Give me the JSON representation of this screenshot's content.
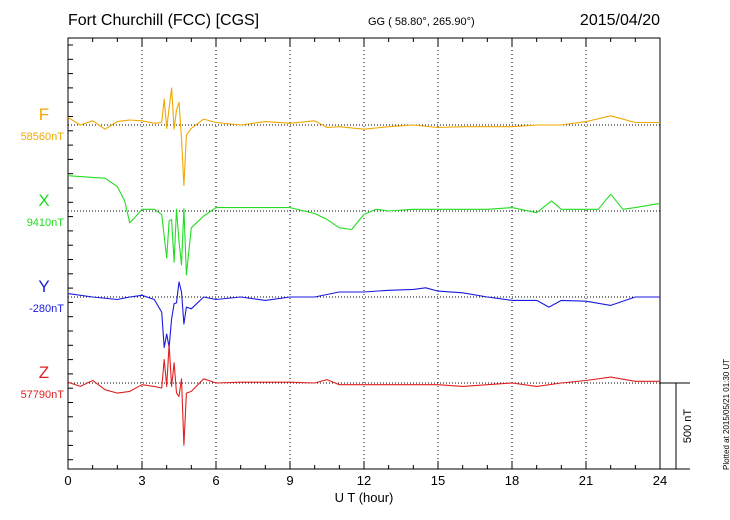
{
  "header": {
    "station": "Fort Churchill (FCC)  [CGS]",
    "coords": "GG ( 58.80°, 265.90°)",
    "date": "2015/04/20"
  },
  "plotted_note": "Plotted at 2015/05/21 01:30 UT",
  "chart_data": {
    "type": "line",
    "xlabel": "U T (hour)",
    "xlim": [
      0,
      24
    ],
    "xticks": [
      "0",
      "3",
      "6",
      "9",
      "12",
      "15",
      "18",
      "21",
      "24"
    ],
    "scale_bar": "500 nT",
    "nT_per_division": 500,
    "grid": "dotted vertical lines every 3 h; dotted baseline per component",
    "series": [
      {
        "name": "F",
        "baseline": "58560nT",
        "color": "#f0a800",
        "points": [
          [
            0,
            45
          ],
          [
            0.5,
            0
          ],
          [
            1,
            25
          ],
          [
            1.5,
            -25
          ],
          [
            2,
            20
          ],
          [
            2.5,
            30
          ],
          [
            3,
            25
          ],
          [
            3.5,
            10
          ],
          [
            3.8,
            15
          ],
          [
            3.9,
            155
          ],
          [
            4.0,
            -20
          ],
          [
            4.1,
            100
          ],
          [
            4.2,
            220
          ],
          [
            4.3,
            -25
          ],
          [
            4.4,
            90
          ],
          [
            4.5,
            135
          ],
          [
            4.6,
            -80
          ],
          [
            4.7,
            -360
          ],
          [
            4.8,
            -60
          ],
          [
            5.0,
            -20
          ],
          [
            5.5,
            35
          ],
          [
            6,
            15
          ],
          [
            7,
            0
          ],
          [
            8,
            20
          ],
          [
            9,
            10
          ],
          [
            10,
            25
          ],
          [
            10.5,
            -15
          ],
          [
            11,
            -10
          ],
          [
            12,
            -25
          ],
          [
            13,
            -10
          ],
          [
            14,
            0
          ],
          [
            15,
            -15
          ],
          [
            16,
            -10
          ],
          [
            17,
            -10
          ],
          [
            18,
            -10
          ],
          [
            19,
            0
          ],
          [
            20,
            0
          ],
          [
            21,
            20
          ],
          [
            22,
            55
          ],
          [
            23,
            15
          ],
          [
            24,
            15
          ]
        ]
      },
      {
        "name": "X",
        "baseline": "9410nT",
        "color": "#22dd22",
        "points": [
          [
            0,
            210
          ],
          [
            1,
            200
          ],
          [
            1.5,
            195
          ],
          [
            2,
            145
          ],
          [
            2.3,
            60
          ],
          [
            2.5,
            -70
          ],
          [
            2.7,
            -40
          ],
          [
            3,
            10
          ],
          [
            3.5,
            10
          ],
          [
            3.8,
            -20
          ],
          [
            4.0,
            -280
          ],
          [
            4.1,
            -60
          ],
          [
            4.2,
            -50
          ],
          [
            4.3,
            -305
          ],
          [
            4.4,
            10
          ],
          [
            4.5,
            -180
          ],
          [
            4.6,
            -320
          ],
          [
            4.7,
            15
          ],
          [
            4.8,
            -380
          ],
          [
            5.0,
            -100
          ],
          [
            5.5,
            -30
          ],
          [
            6,
            20
          ],
          [
            7,
            20
          ],
          [
            8,
            20
          ],
          [
            9,
            20
          ],
          [
            10,
            -15
          ],
          [
            10.5,
            -50
          ],
          [
            11,
            -100
          ],
          [
            11.5,
            -110
          ],
          [
            12,
            -20
          ],
          [
            12.5,
            10
          ],
          [
            13,
            0
          ],
          [
            14,
            10
          ],
          [
            15,
            10
          ],
          [
            16,
            10
          ],
          [
            17,
            10
          ],
          [
            18,
            20
          ],
          [
            19,
            -10
          ],
          [
            19.6,
            60
          ],
          [
            20,
            10
          ],
          [
            21,
            10
          ],
          [
            21.5,
            10
          ],
          [
            22,
            100
          ],
          [
            22.5,
            10
          ],
          [
            23,
            20
          ],
          [
            24,
            45
          ]
        ]
      },
      {
        "name": "Y",
        "baseline": "-280nT",
        "color": "#1a1ae0",
        "points": [
          [
            0,
            20
          ],
          [
            1,
            0
          ],
          [
            2,
            -15
          ],
          [
            2.5,
            0
          ],
          [
            3,
            10
          ],
          [
            3.5,
            -15
          ],
          [
            3.8,
            -90
          ],
          [
            3.9,
            -300
          ],
          [
            4.0,
            -220
          ],
          [
            4.1,
            -300
          ],
          [
            4.2,
            -130
          ],
          [
            4.3,
            -40
          ],
          [
            4.4,
            -35
          ],
          [
            4.5,
            90
          ],
          [
            4.6,
            30
          ],
          [
            4.7,
            -160
          ],
          [
            4.8,
            -60
          ],
          [
            5.0,
            -70
          ],
          [
            5.5,
            0
          ],
          [
            6,
            -15
          ],
          [
            7,
            0
          ],
          [
            8,
            -20
          ],
          [
            9,
            0
          ],
          [
            10,
            0
          ],
          [
            11,
            30
          ],
          [
            12,
            30
          ],
          [
            13,
            40
          ],
          [
            14,
            45
          ],
          [
            14.5,
            55
          ],
          [
            15,
            35
          ],
          [
            16,
            25
          ],
          [
            17,
            0
          ],
          [
            18,
            -20
          ],
          [
            19,
            -20
          ],
          [
            19.5,
            -60
          ],
          [
            20,
            -20
          ],
          [
            21,
            -25
          ],
          [
            22,
            -50
          ],
          [
            23,
            0
          ],
          [
            24,
            0
          ]
        ]
      },
      {
        "name": "Z",
        "baseline": "57790nT",
        "color": "#e02020",
        "points": [
          [
            0,
            5
          ],
          [
            0.5,
            -20
          ],
          [
            1,
            15
          ],
          [
            1.5,
            -40
          ],
          [
            2,
            -60
          ],
          [
            2.5,
            -50
          ],
          [
            3,
            -10
          ],
          [
            3.5,
            -20
          ],
          [
            3.8,
            -30
          ],
          [
            3.9,
            140
          ],
          [
            4.0,
            -20
          ],
          [
            4.1,
            230
          ],
          [
            4.2,
            -20
          ],
          [
            4.3,
            120
          ],
          [
            4.4,
            -60
          ],
          [
            4.5,
            -80
          ],
          [
            4.6,
            25
          ],
          [
            4.7,
            -370
          ],
          [
            4.8,
            -60
          ],
          [
            5.0,
            -50
          ],
          [
            5.5,
            25
          ],
          [
            6,
            0
          ],
          [
            7,
            5
          ],
          [
            8,
            5
          ],
          [
            9,
            5
          ],
          [
            10,
            0
          ],
          [
            10.5,
            20
          ],
          [
            11,
            -10
          ],
          [
            12,
            -10
          ],
          [
            13,
            -10
          ],
          [
            14,
            -10
          ],
          [
            15,
            -10
          ],
          [
            16,
            -20
          ],
          [
            17,
            -10
          ],
          [
            18,
            0
          ],
          [
            19,
            -20
          ],
          [
            20,
            0
          ],
          [
            21,
            15
          ],
          [
            22,
            35
          ],
          [
            23,
            10
          ],
          [
            24,
            10
          ]
        ]
      }
    ]
  }
}
